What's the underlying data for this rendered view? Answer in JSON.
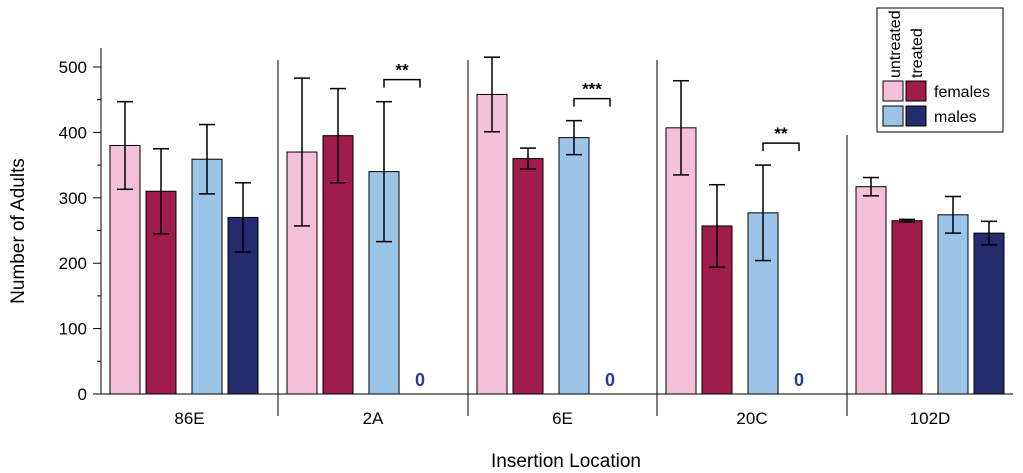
{
  "chart_data": {
    "type": "bar",
    "xlabel": "Insertion Location",
    "ylabel": "Number of Adults",
    "ylim": [
      0,
      500
    ],
    "yticks": [
      0,
      100,
      200,
      300,
      400,
      500
    ],
    "categories": [
      "86E",
      "2A",
      "6E",
      "20C",
      "102D"
    ],
    "series": [
      {
        "name": "untreated females",
        "color": "#f4bfd8",
        "values": [
          380,
          370,
          458,
          407,
          317
        ],
        "err": [
          67,
          113,
          57,
          72,
          14
        ]
      },
      {
        "name": "treated females",
        "color": "#a01c4b",
        "values": [
          310,
          395,
          360,
          257,
          265
        ],
        "err": [
          65,
          72,
          16,
          63,
          2
        ]
      },
      {
        "name": "untreated males",
        "color": "#9cc4e8",
        "values": [
          359,
          340,
          392,
          277,
          274
        ],
        "err": [
          53,
          107,
          26,
          73,
          28
        ]
      },
      {
        "name": "treated males",
        "color": "#252b6e",
        "values": [
          270,
          0,
          0,
          0,
          246
        ],
        "err": [
          53,
          0,
          0,
          0,
          18
        ]
      }
    ],
    "zero_labels": [
      {
        "category": "2A",
        "text": "0"
      },
      {
        "category": "6E",
        "text": "0"
      },
      {
        "category": "20C",
        "text": "0"
      }
    ],
    "significance": [
      {
        "category": "2A",
        "text": "**"
      },
      {
        "category": "6E",
        "text": "***"
      },
      {
        "category": "20C",
        "text": "**"
      }
    ],
    "legend": {
      "position": "top-right",
      "column_headers": [
        "untreated",
        "treated"
      ],
      "rows": [
        "females",
        "males"
      ]
    }
  }
}
